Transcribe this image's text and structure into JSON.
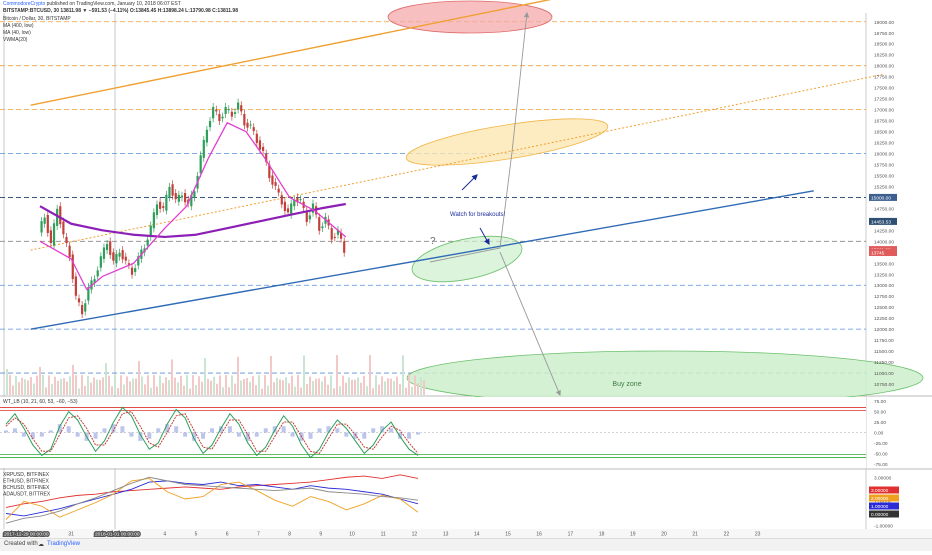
{
  "header": {
    "publisher": "CommodoreCrypto",
    "published": "published on TradingView.com, January 10, 2018 06:07 EST",
    "symbol_line": "BITSTAMP:BTCUSD, 30  13811.98 ▼ −591.53 (−4.11%) O:13845.45 H:13898.24 L:13790.98 C:13811.98",
    "title": "Bitcoin / Dollar, 30, BITSTAMP",
    "indicators": [
      "MA (400, low)",
      "MA (40, low)",
      "VWMA(20)"
    ]
  },
  "annotations": {
    "breakout": "Watch for breakouts!",
    "question": "?",
    "buy_zone": "Buy zone"
  },
  "footer": {
    "created_with": "Created with",
    "brand": "TradingView"
  },
  "colors": {
    "candle_up": "#2e9e5b",
    "candle_down": "#c2403a",
    "ma400": "#8c1fb5",
    "ma40": "#e23fcf",
    "trend_blue": "#2f6bb5",
    "trend_orange": "#f0a030",
    "red_zone": "#f4a9a9",
    "yellow_zone": "#fde7b2",
    "green_zone": "#cdeecd",
    "arrow": "#1a2a9a"
  },
  "chart_data": [
    {
      "type": "line",
      "panel": "price",
      "xlabel": "",
      "ylabel": "",
      "ylim": [
        10500,
        19200
      ],
      "x_ticks": [
        "30",
        "31",
        "2",
        "3",
        "4",
        "5",
        "6",
        "7",
        "8",
        "9",
        "10",
        "11",
        "12",
        "13",
        "14",
        "15",
        "16",
        "17",
        "18",
        "19",
        "20",
        "21",
        "22",
        "23"
      ],
      "date_markers": [
        "2017-12-29 00:00:00",
        "2018-01-01 00:00:00"
      ],
      "y_ticks": [
        19000,
        18750,
        18500,
        18250,
        18000,
        17750,
        17500,
        17250,
        17000,
        16750,
        16500,
        16250,
        16000,
        15750,
        15500,
        15250,
        15000,
        14750,
        14500,
        14250,
        14000,
        13750,
        13500,
        13250,
        13000,
        12750,
        12500,
        12250,
        12000,
        11750,
        11500,
        11250,
        11000,
        10750
      ],
      "price_labels": [
        {
          "value": 15000,
          "text": "15000.00",
          "bg": "#3d5f8f"
        },
        {
          "value": 14453.53,
          "text": "14453.53",
          "bg": "#2f5073"
        },
        {
          "value": 13811.98,
          "text": "13811.98",
          "bg": "#e05c5c"
        },
        {
          "value": 13745,
          "text": "13745",
          "bg": "#e05c5c"
        }
      ],
      "close_series": [
        {
          "t": 0,
          "v": 14200
        },
        {
          "t": 0.2,
          "v": 14600
        },
        {
          "t": 0.4,
          "v": 13900
        },
        {
          "t": 0.6,
          "v": 14800
        },
        {
          "t": 0.8,
          "v": 14100
        },
        {
          "t": 1.0,
          "v": 13700
        },
        {
          "t": 1.2,
          "v": 12700
        },
        {
          "t": 1.4,
          "v": 12400
        },
        {
          "t": 1.6,
          "v": 12900
        },
        {
          "t": 1.8,
          "v": 13200
        },
        {
          "t": 2.0,
          "v": 13600
        },
        {
          "t": 2.2,
          "v": 14000
        },
        {
          "t": 2.4,
          "v": 13500
        },
        {
          "t": 2.6,
          "v": 13800
        },
        {
          "t": 2.8,
          "v": 13500
        },
        {
          "t": 3.0,
          "v": 13300
        },
        {
          "t": 3.2,
          "v": 13600
        },
        {
          "t": 3.4,
          "v": 13900
        },
        {
          "t": 3.6,
          "v": 14300
        },
        {
          "t": 3.8,
          "v": 14900
        },
        {
          "t": 4.0,
          "v": 14700
        },
        {
          "t": 4.2,
          "v": 15300
        },
        {
          "t": 4.4,
          "v": 14900
        },
        {
          "t": 4.6,
          "v": 15100
        },
        {
          "t": 4.8,
          "v": 14800
        },
        {
          "t": 5.0,
          "v": 15200
        },
        {
          "t": 5.2,
          "v": 15900
        },
        {
          "t": 5.4,
          "v": 16600
        },
        {
          "t": 5.6,
          "v": 17000
        },
        {
          "t": 5.8,
          "v": 16800
        },
        {
          "t": 6.0,
          "v": 17000
        },
        {
          "t": 6.2,
          "v": 16900
        },
        {
          "t": 6.4,
          "v": 17100
        },
        {
          "t": 6.6,
          "v": 16700
        },
        {
          "t": 6.8,
          "v": 16600
        },
        {
          "t": 7.0,
          "v": 16300
        },
        {
          "t": 7.2,
          "v": 16000
        },
        {
          "t": 7.4,
          "v": 15500
        },
        {
          "t": 7.6,
          "v": 15200
        },
        {
          "t": 7.8,
          "v": 14900
        },
        {
          "t": 8.0,
          "v": 14600
        },
        {
          "t": 8.2,
          "v": 15000
        },
        {
          "t": 8.4,
          "v": 14900
        },
        {
          "t": 8.6,
          "v": 14500
        },
        {
          "t": 8.8,
          "v": 14800
        },
        {
          "t": 9.0,
          "v": 14300
        },
        {
          "t": 9.2,
          "v": 14500
        },
        {
          "t": 9.4,
          "v": 14100
        },
        {
          "t": 9.6,
          "v": 14200
        },
        {
          "t": 9.8,
          "v": 13800
        }
      ],
      "ma40_series": [
        {
          "t": 0,
          "v": 14000
        },
        {
          "t": 1,
          "v": 13600
        },
        {
          "t": 1.5,
          "v": 12900
        },
        {
          "t": 2,
          "v": 13200
        },
        {
          "t": 3,
          "v": 13500
        },
        {
          "t": 4,
          "v": 14300
        },
        {
          "t": 4.7,
          "v": 14800
        },
        {
          "t": 5.4,
          "v": 15900
        },
        {
          "t": 6,
          "v": 16700
        },
        {
          "t": 6.6,
          "v": 16500
        },
        {
          "t": 7.2,
          "v": 15900
        },
        {
          "t": 8,
          "v": 15000
        },
        {
          "t": 8.8,
          "v": 14700
        },
        {
          "t": 9.8,
          "v": 14100
        }
      ],
      "ma400_series": [
        {
          "t": 0,
          "v": 14800
        },
        {
          "t": 1,
          "v": 14400
        },
        {
          "t": 2,
          "v": 14250
        },
        {
          "t": 3,
          "v": 14150
        },
        {
          "t": 4,
          "v": 14100
        },
        {
          "t": 5,
          "v": 14150
        },
        {
          "t": 6,
          "v": 14300
        },
        {
          "t": 7,
          "v": 14450
        },
        {
          "t": 8,
          "v": 14600
        },
        {
          "t": 9,
          "v": 14750
        },
        {
          "t": 9.8,
          "v": 14850
        }
      ],
      "horizontal_levels": [
        {
          "v": 19000,
          "color": "#f0a030"
        },
        {
          "v": 18000,
          "color": "#f0a030"
        },
        {
          "v": 17000,
          "color": "#f0a030"
        },
        {
          "v": 16000,
          "color": "#5b8fd9"
        },
        {
          "v": 15000,
          "color": "#1f3f70"
        },
        {
          "v": 14000,
          "color": "#888888"
        },
        {
          "v": 13000,
          "color": "#5b8fd9"
        },
        {
          "v": 12000,
          "color": "#5b8fd9"
        },
        {
          "v": 11000,
          "color": "#5b8fd9"
        }
      ],
      "trendlines": [
        {
          "from": {
            "t": -0.3,
            "v": 12000
          },
          "to": {
            "t": 24.8,
            "v": 15150
          },
          "color": "#2f6bb5",
          "style": "solid"
        },
        {
          "from": {
            "t": -0.3,
            "v": 17100
          },
          "to": {
            "t": 17.0,
            "v": 19600
          },
          "color": "#f0a030",
          "style": "solid"
        },
        {
          "from": {
            "t": -0.3,
            "v": 13800
          },
          "to": {
            "t": 27.0,
            "v": 17800
          },
          "color": "#f0a030",
          "style": "dotted"
        }
      ]
    },
    {
      "type": "line",
      "panel": "oscillator",
      "title": "WT_LB (10, 21, 60, 53, −60, −53)",
      "ylim": [
        -85,
        85
      ],
      "y_ticks": [
        75,
        50,
        25,
        0,
        -25,
        -50,
        -75
      ],
      "overbought": [
        60,
        53
      ],
      "oversold": [
        -60,
        -53
      ],
      "wt1": [
        20,
        45,
        10,
        -30,
        -55,
        -40,
        15,
        50,
        30,
        -10,
        -45,
        -20,
        25,
        60,
        40,
        -5,
        -40,
        -25,
        20,
        55,
        35,
        -15,
        -50,
        -30,
        10,
        45,
        20,
        -25,
        -55,
        -35,
        5,
        40,
        15,
        -30,
        -60,
        -40,
        0,
        30,
        10,
        -20,
        -50,
        -30,
        5,
        25,
        -10,
        -40,
        -55
      ],
      "wt2": [
        15,
        35,
        20,
        -15,
        -45,
        -45,
        -5,
        35,
        40,
        10,
        -30,
        -30,
        5,
        45,
        50,
        15,
        -25,
        -35,
        0,
        40,
        45,
        5,
        -35,
        -40,
        -5,
        30,
        30,
        -5,
        -45,
        -45,
        -10,
        25,
        25,
        -10,
        -45,
        -50,
        -15,
        20,
        20,
        -5,
        -35,
        -40,
        -10,
        15,
        5,
        -25,
        -50
      ]
    },
    {
      "type": "line",
      "panel": "comparison",
      "legend": [
        "XRPUSD, BITFINEX",
        "ETHUSD, BITFINEX",
        "BCHUSD, BITFINEX",
        "ADAUSDT, BITTREX"
      ],
      "y_ticks": [
        3.0,
        2.0,
        1.0,
        0.0,
        -1.0
      ],
      "ylim": [
        -1.2,
        3.6
      ],
      "series": [
        {
          "name": "XRPUSD, BITFINEX",
          "color": "#e23030",
          "values": [
            0.5,
            0.8,
            1.0,
            1.3,
            1.5,
            1.6,
            1.8,
            1.9,
            2.0,
            2.1,
            2.2,
            2.1,
            2.0,
            2.2,
            2.3,
            2.4,
            2.5,
            2.6,
            2.8,
            3.0,
            3.1,
            2.9,
            3.2,
            2.9
          ]
        },
        {
          "name": "ETHUSD, BITFINEX",
          "color": "#2b2bd6",
          "values": [
            0.0,
            -0.2,
            0.1,
            0.4,
            0.8,
            1.2,
            1.6,
            2.0,
            2.6,
            2.7,
            2.5,
            2.4,
            2.6,
            2.3,
            2.4,
            2.2,
            2.0,
            2.3,
            2.1,
            2.0,
            1.8,
            1.6,
            1.2,
            0.8
          ]
        },
        {
          "name": "BCHUSD, BITFINEX",
          "color": "#f0a020",
          "values": [
            -0.5,
            1.0,
            0.6,
            -0.3,
            0.3,
            0.9,
            1.6,
            2.7,
            2.9,
            1.8,
            1.2,
            1.4,
            2.4,
            2.6,
            1.9,
            1.1,
            0.6,
            1.4,
            1.0,
            0.3,
            0.8,
            1.5,
            1.2,
            0.1
          ]
        },
        {
          "name": "ADAUSDT, BITTREX",
          "color": "#8a8a8a",
          "values": [
            -0.8,
            -0.4,
            -0.2,
            0.2,
            0.8,
            1.3,
            1.9,
            2.5,
            3.0,
            2.7,
            2.4,
            2.3,
            2.2,
            2.1,
            2.0,
            1.9,
            2.0,
            2.1,
            1.8,
            1.7,
            1.6,
            1.4,
            1.3,
            1.1
          ]
        }
      ],
      "price_labels": [
        {
          "text": "3.00000",
          "bg": "#e23030"
        },
        {
          "text": "2.00000",
          "bg": "#f0a020"
        },
        {
          "text": "1.00000",
          "bg": "#2b2bd6"
        },
        {
          "text": "0.00000",
          "bg": "#333333"
        }
      ]
    }
  ]
}
